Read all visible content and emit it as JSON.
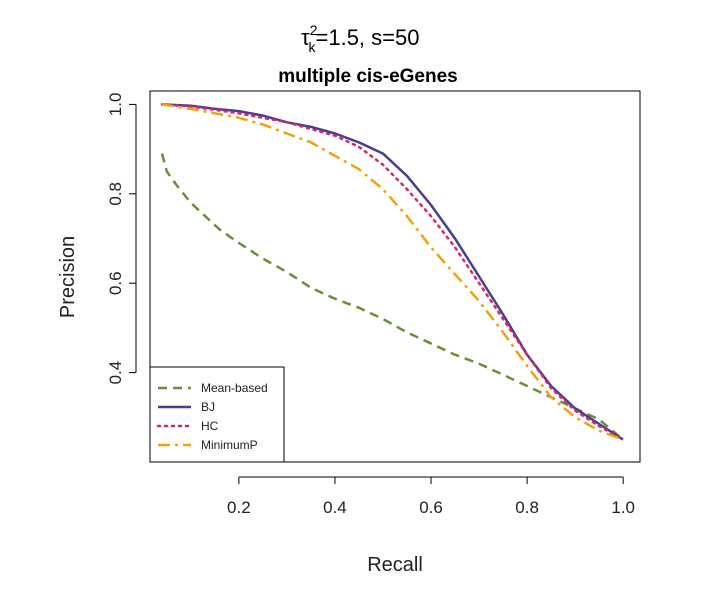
{
  "chart_data": {
    "type": "line",
    "title": {
      "tau_symbol": "τ",
      "tau_superscript": "2",
      "tau_subscript": "k",
      "rest": "=1.5, s=50"
    },
    "subtitle": "multiple cis-eGenes",
    "xlabel": "Recall",
    "ylabel": "Precision",
    "xlim": [
      0.015,
      1.035
    ],
    "ylim": [
      0.2,
      1.03
    ],
    "x_ticks": [
      {
        "value": 0.2,
        "label": "0.2"
      },
      {
        "value": 0.4,
        "label": "0.4"
      },
      {
        "value": 0.6,
        "label": "0.6"
      },
      {
        "value": 0.8,
        "label": "0.8"
      },
      {
        "value": 1.0,
        "label": "1.0"
      }
    ],
    "y_ticks": [
      {
        "value": 0.4,
        "label": "0.4"
      },
      {
        "value": 0.6,
        "label": "0.6"
      },
      {
        "value": 0.8,
        "label": "0.8"
      },
      {
        "value": 1.0,
        "label": "1.0"
      }
    ],
    "grid": false,
    "legend_position": "bottom-left",
    "series": [
      {
        "name": "Mean-based",
        "color": "#6b8e3a",
        "style": "dashed",
        "points": [
          [
            0.04,
            0.89
          ],
          [
            0.05,
            0.85
          ],
          [
            0.07,
            0.82
          ],
          [
            0.1,
            0.78
          ],
          [
            0.13,
            0.75
          ],
          [
            0.16,
            0.72
          ],
          [
            0.2,
            0.69
          ],
          [
            0.25,
            0.655
          ],
          [
            0.3,
            0.625
          ],
          [
            0.35,
            0.59
          ],
          [
            0.4,
            0.565
          ],
          [
            0.45,
            0.545
          ],
          [
            0.5,
            0.52
          ],
          [
            0.55,
            0.49
          ],
          [
            0.6,
            0.465
          ],
          [
            0.65,
            0.44
          ],
          [
            0.7,
            0.42
          ],
          [
            0.75,
            0.395
          ],
          [
            0.8,
            0.37
          ],
          [
            0.85,
            0.345
          ],
          [
            0.9,
            0.32
          ],
          [
            0.95,
            0.295
          ],
          [
            1.0,
            0.25
          ]
        ]
      },
      {
        "name": "BJ",
        "color": "#4a3d8f",
        "style": "solid",
        "points": [
          [
            0.04,
            1.0
          ],
          [
            0.1,
            0.997
          ],
          [
            0.15,
            0.99
          ],
          [
            0.2,
            0.985
          ],
          [
            0.25,
            0.975
          ],
          [
            0.3,
            0.96
          ],
          [
            0.35,
            0.95
          ],
          [
            0.4,
            0.935
          ],
          [
            0.45,
            0.915
          ],
          [
            0.5,
            0.89
          ],
          [
            0.55,
            0.84
          ],
          [
            0.6,
            0.775
          ],
          [
            0.65,
            0.7
          ],
          [
            0.7,
            0.615
          ],
          [
            0.75,
            0.53
          ],
          [
            0.8,
            0.44
          ],
          [
            0.85,
            0.37
          ],
          [
            0.9,
            0.32
          ],
          [
            0.95,
            0.285
          ],
          [
            1.0,
            0.25
          ]
        ]
      },
      {
        "name": "HC",
        "color": "#d6266c",
        "style": "dotted",
        "points": [
          [
            0.04,
            1.0
          ],
          [
            0.1,
            0.995
          ],
          [
            0.15,
            0.988
          ],
          [
            0.2,
            0.98
          ],
          [
            0.25,
            0.97
          ],
          [
            0.3,
            0.96
          ],
          [
            0.35,
            0.945
          ],
          [
            0.4,
            0.93
          ],
          [
            0.45,
            0.905
          ],
          [
            0.5,
            0.865
          ],
          [
            0.55,
            0.81
          ],
          [
            0.6,
            0.75
          ],
          [
            0.65,
            0.68
          ],
          [
            0.7,
            0.6
          ],
          [
            0.75,
            0.52
          ],
          [
            0.8,
            0.44
          ],
          [
            0.85,
            0.365
          ],
          [
            0.9,
            0.315
          ],
          [
            0.95,
            0.28
          ],
          [
            1.0,
            0.25
          ]
        ]
      },
      {
        "name": "MinimumP",
        "color": "#f2a20e",
        "style": "dashdot",
        "points": [
          [
            0.04,
            1.0
          ],
          [
            0.1,
            0.99
          ],
          [
            0.15,
            0.98
          ],
          [
            0.2,
            0.97
          ],
          [
            0.25,
            0.955
          ],
          [
            0.3,
            0.935
          ],
          [
            0.35,
            0.915
          ],
          [
            0.4,
            0.885
          ],
          [
            0.45,
            0.855
          ],
          [
            0.5,
            0.81
          ],
          [
            0.55,
            0.75
          ],
          [
            0.6,
            0.68
          ],
          [
            0.65,
            0.62
          ],
          [
            0.7,
            0.56
          ],
          [
            0.75,
            0.49
          ],
          [
            0.8,
            0.415
          ],
          [
            0.85,
            0.345
          ],
          [
            0.9,
            0.3
          ],
          [
            0.95,
            0.27
          ],
          [
            1.0,
            0.25
          ]
        ]
      }
    ]
  }
}
